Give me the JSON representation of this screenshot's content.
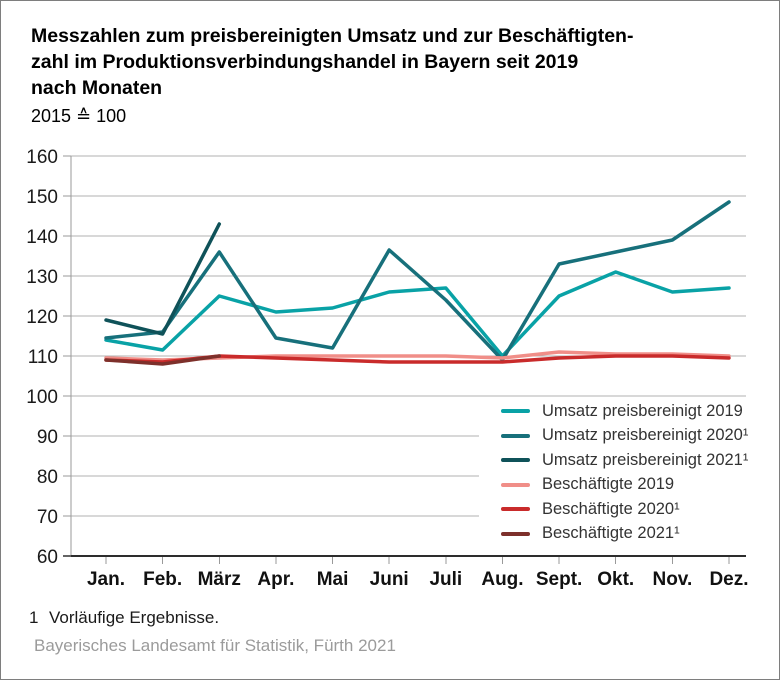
{
  "header": {
    "title_lines": [
      "Messzahlen zum preisbereinigten Umsatz und zur Beschäftigten-",
      "zahl im Produktionsverbindungshandel in Bayern seit 2019",
      "nach Monaten"
    ],
    "subtitle": "2015 ≙ 100"
  },
  "chart_data": {
    "type": "line",
    "categories": [
      "Jan.",
      "Feb.",
      "März",
      "Apr.",
      "Mai",
      "Juni",
      "Juli",
      "Aug.",
      "Sept.",
      "Okt.",
      "Nov.",
      "Dez."
    ],
    "series": [
      {
        "name": "Umsatz preisbereinigt 2019",
        "color": "#09a2a6",
        "values": [
          114,
          111.5,
          125,
          121,
          122,
          126,
          127,
          110,
          125,
          131,
          126,
          127
        ]
      },
      {
        "name": "Umsatz preisbereinigt 2020¹",
        "color": "#17707b",
        "values": [
          114.5,
          116,
          136,
          114.5,
          112,
          136.5,
          124,
          109,
          133,
          136,
          139,
          148.5
        ]
      },
      {
        "name": "Umsatz preisbereinigt 2021¹",
        "color": "#0f5259",
        "values": [
          119,
          115.5,
          143
        ]
      },
      {
        "name": "Beschäftigte 2019",
        "color": "#f08e88",
        "values": [
          109.5,
          109,
          109.5,
          110,
          110,
          110,
          110,
          109.5,
          111,
          110.5,
          110.5,
          110
        ]
      },
      {
        "name": "Beschäftigte 2020¹",
        "color": "#c92b2b",
        "values": [
          109,
          108.5,
          110,
          109.5,
          109,
          108.5,
          108.5,
          108.5,
          109.5,
          110,
          110,
          109.5
        ]
      },
      {
        "name": "Beschäftigte 2021¹",
        "color": "#7d302b",
        "values": [
          109,
          108,
          110
        ]
      }
    ],
    "ylim": [
      60,
      160
    ],
    "ytick_step": 10,
    "grid": true,
    "legend_position": "inside-bottom-right"
  },
  "footnote": {
    "marker": "1",
    "text": "Vorläufige Ergebnisse."
  },
  "source": "Bayerisches Landesamt für Statistik, Fürth 2021"
}
